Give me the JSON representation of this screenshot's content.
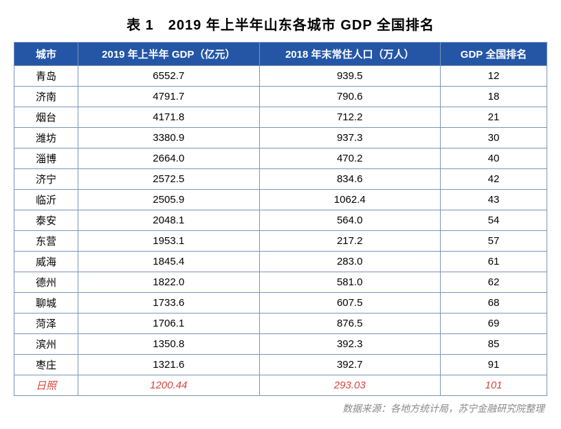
{
  "title": "表 1　2019 年上半年山东各城市 GDP 全国排名",
  "table": {
    "header_bg": "#2556a6",
    "header_color": "#ffffff",
    "border_color": "#7a94b8",
    "highlight_color": "#d6443c",
    "col_widths": [
      "12%",
      "34%",
      "34%",
      "20%"
    ],
    "columns": [
      "城市",
      "2019 年上半年 GDP（亿元）",
      "2018 年末常住人口（万人）",
      "GDP 全国排名"
    ],
    "rows": [
      {
        "city": "青岛",
        "gdp": "6552.7",
        "pop": "939.5",
        "rank": "12",
        "hl": false
      },
      {
        "city": "济南",
        "gdp": "4791.7",
        "pop": "790.6",
        "rank": "18",
        "hl": false
      },
      {
        "city": "烟台",
        "gdp": "4171.8",
        "pop": "712.2",
        "rank": "21",
        "hl": false
      },
      {
        "city": "潍坊",
        "gdp": "3380.9",
        "pop": "937.3",
        "rank": "30",
        "hl": false
      },
      {
        "city": "淄博",
        "gdp": "2664.0",
        "pop": "470.2",
        "rank": "40",
        "hl": false
      },
      {
        "city": "济宁",
        "gdp": "2572.5",
        "pop": "834.6",
        "rank": "42",
        "hl": false
      },
      {
        "city": "临沂",
        "gdp": "2505.9",
        "pop": "1062.4",
        "rank": "43",
        "hl": false
      },
      {
        "city": "泰安",
        "gdp": "2048.1",
        "pop": "564.0",
        "rank": "54",
        "hl": false
      },
      {
        "city": "东营",
        "gdp": "1953.1",
        "pop": "217.2",
        "rank": "57",
        "hl": false
      },
      {
        "city": "威海",
        "gdp": "1845.4",
        "pop": "283.0",
        "rank": "61",
        "hl": false
      },
      {
        "city": "德州",
        "gdp": "1822.0",
        "pop": "581.0",
        "rank": "62",
        "hl": false
      },
      {
        "city": "聊城",
        "gdp": "1733.6",
        "pop": "607.5",
        "rank": "68",
        "hl": false
      },
      {
        "city": "菏泽",
        "gdp": "1706.1",
        "pop": "876.5",
        "rank": "69",
        "hl": false
      },
      {
        "city": "滨州",
        "gdp": "1350.8",
        "pop": "392.3",
        "rank": "85",
        "hl": false
      },
      {
        "city": "枣庄",
        "gdp": "1321.6",
        "pop": "392.7",
        "rank": "91",
        "hl": false
      },
      {
        "city": "日照",
        "gdp": "1200.44",
        "pop": "293.03",
        "rank": "101",
        "hl": true
      }
    ]
  },
  "source": "数据来源：各地方统计局，苏宁金融研究院整理"
}
